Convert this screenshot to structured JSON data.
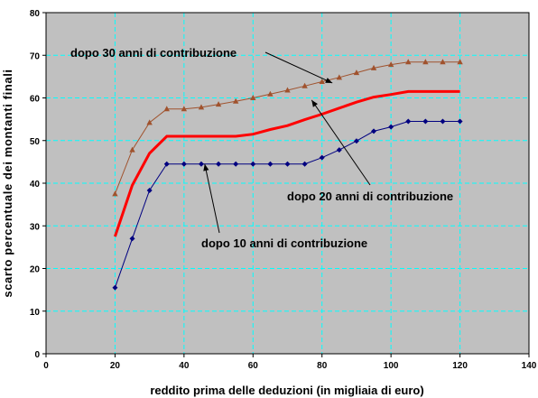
{
  "chart_data": {
    "type": "line",
    "title": "",
    "xlabel": "reddito prima delle deduzioni (in migliaia di euro)",
    "ylabel": "scarto percentuale dei montanti finali",
    "xlim": [
      0,
      140
    ],
    "ylim": [
      0,
      80
    ],
    "xticks": [
      0,
      20,
      40,
      60,
      80,
      100,
      120,
      140
    ],
    "yticks": [
      0,
      10,
      20,
      30,
      40,
      50,
      60,
      70,
      80
    ],
    "grid": true,
    "grid_style": "dashed cyan",
    "plot_background": "#c0c0c0",
    "x": [
      20,
      25,
      30,
      35,
      40,
      45,
      50,
      55,
      60,
      65,
      70,
      75,
      80,
      85,
      90,
      95,
      100,
      105,
      110,
      115,
      120
    ],
    "series": [
      {
        "color": "#a0522d",
        "marker": "triangle",
        "values": [
          37.5,
          47.8,
          54.2,
          57.4,
          57.4,
          57.8,
          58.5,
          59.2,
          60.0,
          60.9,
          61.8,
          62.8,
          63.8,
          64.8,
          65.9,
          67.0,
          67.8,
          68.4,
          68.4,
          68.4,
          68.4
        ]
      },
      {
        "color": "#ff0000",
        "marker": "none",
        "values": [
          27.5,
          39.5,
          47.0,
          51.0,
          51.0,
          51.0,
          51.0,
          51.0,
          51.5,
          52.6,
          53.5,
          54.9,
          56.2,
          57.6,
          59.0,
          60.2,
          60.8,
          61.5,
          61.5,
          61.5,
          61.5
        ]
      },
      {
        "color": "#000080",
        "marker": "diamond",
        "values": [
          15.5,
          27.0,
          38.3,
          44.5,
          44.5,
          44.5,
          44.5,
          44.5,
          44.5,
          44.5,
          44.5,
          44.5,
          46.0,
          47.8,
          49.9,
          52.2,
          53.2,
          54.5,
          54.5,
          54.5,
          54.5
        ]
      }
    ],
    "annotations": [
      {
        "text": "dopo 30 anni di contribuzione",
        "arrow_to": [
          83,
          63.5
        ]
      },
      {
        "text": "dopo 20 anni di contribuzione",
        "arrow_to": [
          77,
          59.5
        ]
      },
      {
        "text": "dopo 10 anni di contribuzione",
        "arrow_to": [
          46,
          44.5
        ]
      }
    ]
  }
}
